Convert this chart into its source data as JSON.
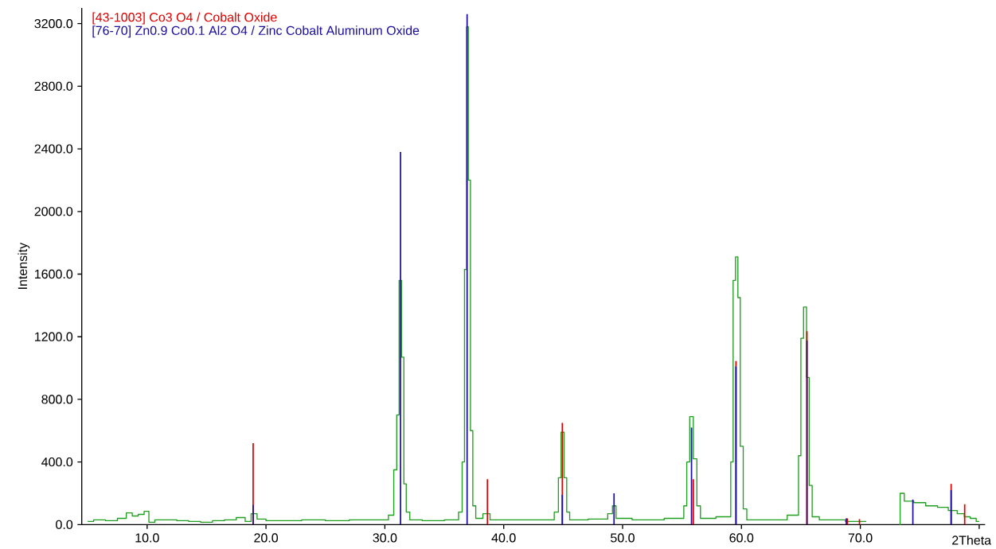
{
  "chart_data": {
    "type": "step",
    "ylabel": "Intensity",
    "xlabel": "2Theta",
    "legend": "top left",
    "xlim": [
      4.5,
      80.5
    ],
    "ylim": [
      0,
      3300
    ],
    "xticks": [
      {
        "value": 10,
        "label": "10.0"
      },
      {
        "value": 20,
        "label": "20.0"
      },
      {
        "value": 30,
        "label": "30.0"
      },
      {
        "value": 40,
        "label": "40.0"
      },
      {
        "value": 50,
        "label": "50.0"
      },
      {
        "value": 60,
        "label": "60.0"
      },
      {
        "value": 70,
        "label": "70.0"
      },
      {
        "value": 80,
        "label": null
      }
    ],
    "yticks": [
      {
        "value": 0,
        "label": "0.0"
      },
      {
        "value": 400,
        "label": "400.0"
      },
      {
        "value": 800,
        "label": "800.0"
      },
      {
        "value": 1200,
        "label": "1200.0"
      },
      {
        "value": 1600,
        "label": "1600.0"
      },
      {
        "value": 2000,
        "label": "2000.0"
      },
      {
        "value": 2400,
        "label": "2400.0"
      },
      {
        "value": 2800,
        "label": "2800.0"
      },
      {
        "value": 3200,
        "label": "3200.0"
      }
    ],
    "series": [
      {
        "color": "#1f9e1f",
        "x": [
          5.0,
          6.0,
          7.0,
          8.0,
          8.5,
          9.0,
          9.5,
          10.0,
          10.3,
          11.0,
          12.0,
          13.0,
          14.0,
          15.0,
          16.0,
          17.0,
          18.0,
          18.5,
          19.0,
          19.5,
          20.5,
          22.0,
          24.0,
          26.0,
          28.0,
          30.0,
          30.6,
          30.9,
          31.1,
          31.3,
          31.5,
          31.7,
          31.9,
          32.3,
          34.0,
          36.0,
          36.4,
          36.6,
          36.8,
          36.95,
          37.1,
          37.3,
          37.5,
          37.8,
          38.7,
          39.0,
          42.0,
          44.0,
          44.5,
          44.7,
          44.95,
          45.2,
          45.4,
          45.7,
          48.5,
          49.0,
          49.3,
          49.6,
          52.0,
          55.0,
          55.3,
          55.5,
          55.8,
          56.1,
          56.4,
          56.7,
          59.0,
          59.2,
          59.4,
          59.6,
          59.8,
          60.0,
          60.3,
          60.6,
          63.0,
          64.7,
          64.9,
          65.1,
          65.35,
          65.6,
          65.8,
          66.1,
          67.0,
          70.5,
          70.7,
          73.3,
          73.4,
          74.0,
          75.0,
          76.0,
          77.0,
          77.8,
          78.5,
          79.0,
          79.5,
          80.0
        ],
        "values": [
          20,
          30,
          25,
          40,
          75,
          55,
          65,
          85,
          15,
          30,
          30,
          25,
          20,
          15,
          25,
          30,
          45,
          20,
          70,
          35,
          25,
          25,
          30,
          25,
          30,
          30,
          60,
          350,
          700,
          1560,
          1070,
          260,
          80,
          30,
          25,
          30,
          80,
          400,
          1630,
          3180,
          2200,
          600,
          120,
          40,
          70,
          30,
          30,
          30,
          80,
          300,
          590,
          300,
          80,
          30,
          35,
          70,
          120,
          40,
          30,
          40,
          120,
          400,
          690,
          420,
          120,
          40,
          50,
          400,
          1560,
          1710,
          1450,
          500,
          100,
          30,
          30,
          60,
          440,
          1190,
          1390,
          940,
          250,
          50,
          30,
          20,
          null,
          0,
          200,
          150,
          140,
          120,
          110,
          90,
          70,
          50,
          40,
          20
        ]
      },
      {
        "type": "bar",
        "name": "[43-1003]  Co3 O4 / Cobalt Oxide",
        "color": "#e00000",
        "x": [
          18.92,
          38.63,
          44.93,
          55.95,
          59.54,
          65.51,
          68.91,
          69.93,
          77.64,
          78.78
        ],
        "values": [
          520,
          290,
          650,
          290,
          1045,
          1235,
          40,
          35,
          260,
          130
        ]
      },
      {
        "type": "bar",
        "name": "[76-70]  Zn0.9 Co0.1 Al2 O4 / Zinc Cobalt Aluminum Oxide",
        "color": "#1c109c",
        "x": [
          18.92,
          31.32,
          36.92,
          44.93,
          49.28,
          55.8,
          59.54,
          65.51,
          68.82,
          74.42,
          77.64
        ],
        "values": [
          125,
          2380,
          3260,
          190,
          200,
          620,
          1010,
          1175,
          40,
          160,
          220
        ]
      }
    ]
  }
}
